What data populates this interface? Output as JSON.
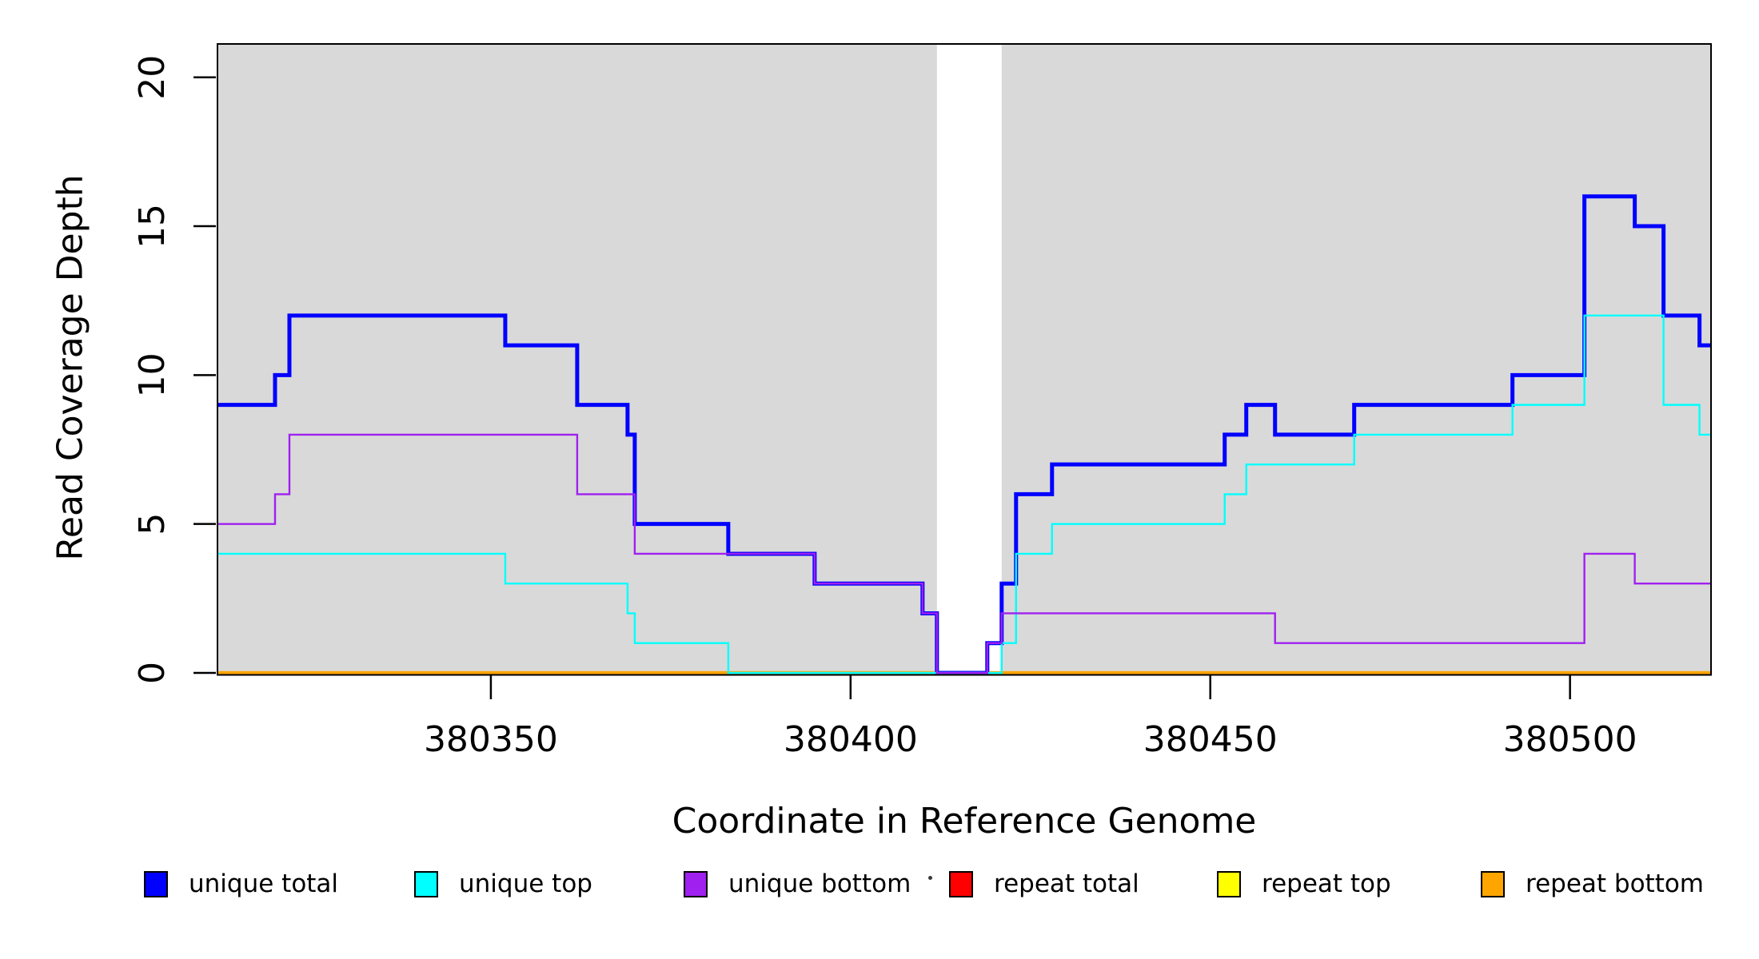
{
  "chart_data": {
    "type": "line",
    "subtype": "step-coverage-plot",
    "title": "",
    "xlabel": "Coordinate in Reference Genome",
    "ylabel": "Read Coverage Depth",
    "xlim": [
      380312,
      380519.6
    ],
    "ylim": [
      0,
      21.12
    ],
    "x_ticks": [
      380350,
      380400,
      380450,
      380500
    ],
    "y_ticks": [
      0,
      5,
      10,
      15,
      20
    ],
    "grid": false,
    "background_color": "#ffffff",
    "axis_color": "#000000",
    "shade_color": "#d9d9d9",
    "shaded_regions": [
      {
        "x0": 380312,
        "x1": 380412
      },
      {
        "x0": 380421,
        "x1": 380519.6
      }
    ],
    "series": [
      {
        "name": "repeat total",
        "color": "#ff0000",
        "line_width": 2.4,
        "steps": [
          [
            380312,
            0
          ]
        ]
      },
      {
        "name": "repeat top",
        "color": "#ffff00",
        "line_width": 2.4,
        "steps": [
          [
            380312,
            0
          ]
        ]
      },
      {
        "name": "repeat bottom",
        "color": "#ffa500",
        "line_width": 4.5,
        "steps": [
          [
            380312,
            0
          ]
        ]
      },
      {
        "name": "unique total",
        "color": "#0000ff",
        "line_width": 5,
        "steps": [
          [
            380312,
            9
          ],
          [
            380320,
            10
          ],
          [
            380322,
            12
          ],
          [
            380352,
            11
          ],
          [
            380362,
            9
          ],
          [
            380369,
            8
          ],
          [
            380370,
            5
          ],
          [
            380383,
            4
          ],
          [
            380395,
            3
          ],
          [
            380410,
            2
          ],
          [
            380412,
            0
          ],
          [
            380419,
            1
          ],
          [
            380421,
            3
          ],
          [
            380423,
            6
          ],
          [
            380428,
            7
          ],
          [
            380452,
            8
          ],
          [
            380455,
            9
          ],
          [
            380459,
            8
          ],
          [
            380470,
            9
          ],
          [
            380492,
            10
          ],
          [
            380502,
            16
          ],
          [
            380509,
            15
          ],
          [
            380513,
            12
          ],
          [
            380518,
            11
          ]
        ]
      },
      {
        "name": "unique top",
        "color": "#00ffff",
        "line_width": 2.4,
        "steps": [
          [
            380312,
            4
          ],
          [
            380352,
            3
          ],
          [
            380369,
            2
          ],
          [
            380370,
            1
          ],
          [
            380383,
            0
          ],
          [
            380421,
            1
          ],
          [
            380423,
            4
          ],
          [
            380428,
            5
          ],
          [
            380452,
            6
          ],
          [
            380455,
            7
          ],
          [
            380470,
            8
          ],
          [
            380492,
            9
          ],
          [
            380502,
            12
          ],
          [
            380513,
            9
          ],
          [
            380518,
            8
          ]
        ]
      },
      {
        "name": "unique bottom",
        "color": "#a020f0",
        "line_width": 2.4,
        "steps": [
          [
            380312,
            5
          ],
          [
            380320,
            6
          ],
          [
            380322,
            8
          ],
          [
            380362,
            6
          ],
          [
            380370,
            4
          ],
          [
            380395,
            3
          ],
          [
            380410,
            2
          ],
          [
            380412,
            0
          ],
          [
            380419,
            1
          ],
          [
            380421,
            2
          ],
          [
            380459,
            1
          ],
          [
            380502,
            4
          ],
          [
            380509,
            3
          ]
        ]
      }
    ],
    "legend": {
      "position": "bottom",
      "entries": [
        {
          "label": "unique total",
          "color": "#0000ff"
        },
        {
          "label": "unique top",
          "color": "#00ffff"
        },
        {
          "label": "unique bottom",
          "color": "#a020f0"
        },
        {
          "label": "repeat total",
          "color": "#ff0000"
        },
        {
          "label": "repeat top",
          "color": "#ffff00"
        },
        {
          "label": "repeat bottom",
          "color": "#ffa500"
        }
      ]
    }
  }
}
